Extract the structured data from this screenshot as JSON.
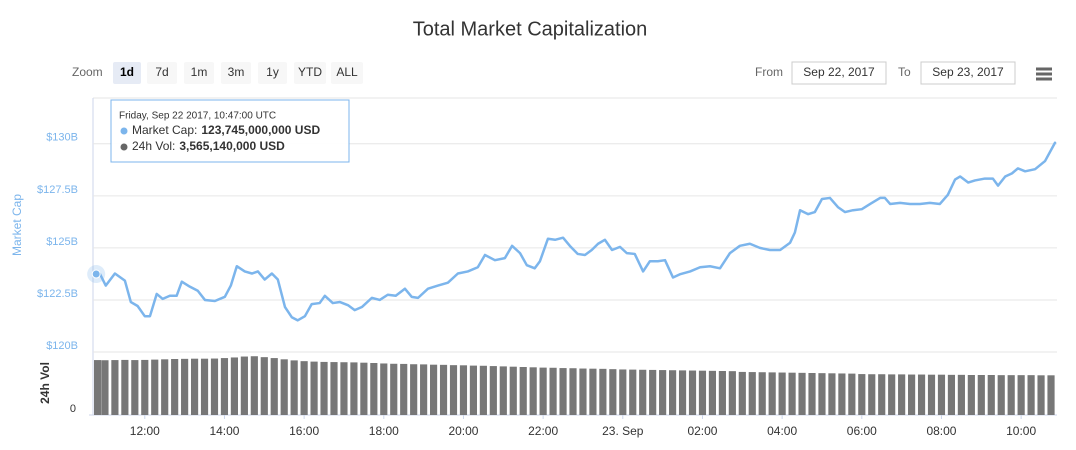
{
  "chart_data": {
    "type": "line",
    "title": "Total Market Capitalization",
    "ylabel": "Market Cap",
    "y2label": "24h Vol",
    "xlim": [
      10.7,
      34.85
    ],
    "xticks": [
      {
        "value": 12,
        "label": "12:00"
      },
      {
        "value": 14,
        "label": "14:00"
      },
      {
        "value": 16,
        "label": "16:00"
      },
      {
        "value": 18,
        "label": "18:00"
      },
      {
        "value": 20,
        "label": "20:00"
      },
      {
        "value": 22,
        "label": "22:00"
      },
      {
        "value": 24,
        "label": "23. Sep"
      },
      {
        "value": 26,
        "label": "02:00"
      },
      {
        "value": 28,
        "label": "04:00"
      },
      {
        "value": 30,
        "label": "06:00"
      },
      {
        "value": 32,
        "label": "08:00"
      },
      {
        "value": 34,
        "label": "10:00"
      }
    ],
    "ylim": [
      120,
      132.2
    ],
    "yticks": [
      {
        "value": 120,
        "label": "$120B"
      },
      {
        "value": 122.5,
        "label": "$122.5B"
      },
      {
        "value": 125,
        "label": "$125B"
      },
      {
        "value": 127.5,
        "label": "$127.5B"
      },
      {
        "value": 130,
        "label": "$130B"
      }
    ],
    "y2lim": [
      0,
      3.9
    ],
    "y2ticks": [
      0
    ],
    "grid": true,
    "series": [
      {
        "color": "#7cb5ec",
        "x": [
          10.78,
          10.87,
          11.02,
          11.25,
          11.5,
          11.65,
          11.82,
          12,
          12.13,
          12.3,
          12.45,
          12.63,
          12.8,
          12.93,
          13.13,
          13.33,
          13.51,
          13.76,
          14.01,
          14.16,
          14.31,
          14.51,
          14.69,
          14.84,
          15.01,
          15.19,
          15.34,
          15.52,
          15.69,
          15.84,
          16.02,
          16.19,
          16.39,
          16.52,
          16.72,
          16.9,
          17.1,
          17.27,
          17.45,
          17.7,
          17.9,
          18.1,
          18.3,
          18.53,
          18.7,
          18.86,
          19.11,
          19.36,
          19.61,
          19.86,
          20.11,
          20.36,
          20.54,
          20.79,
          21.04,
          21.22,
          21.42,
          21.59,
          21.79,
          21.92,
          22.12,
          22.3,
          22.5,
          22.67,
          22.87,
          23.05,
          23.22,
          23.38,
          23.55,
          23.73,
          23.93,
          24.1,
          24.3,
          24.51,
          24.68,
          24.88,
          25.06,
          25.26,
          25.43,
          25.69,
          25.94,
          26.19,
          26.44,
          26.69,
          26.94,
          27.19,
          27.44,
          27.69,
          27.95,
          28.2,
          28.32,
          28.45,
          28.65,
          28.82,
          29,
          29.2,
          29.4,
          29.58,
          29.78,
          30,
          30.21,
          30.46,
          30.58,
          30.71,
          30.96,
          31.21,
          31.46,
          31.71,
          31.96,
          32.16,
          32.34,
          32.47,
          32.67,
          32.84,
          33.09,
          33.29,
          33.42,
          33.6,
          33.77,
          33.92,
          34.1,
          34.35,
          34.6,
          34.85
        ],
        "values": [
          123.745,
          123.77,
          123.19,
          123.77,
          123.43,
          122.4,
          122.21,
          121.72,
          121.72,
          122.79,
          122.55,
          122.7,
          122.7,
          123.38,
          123.14,
          122.94,
          122.5,
          122.45,
          122.65,
          123.19,
          124.12,
          123.87,
          123.77,
          123.87,
          123.48,
          123.77,
          123.48,
          122.16,
          121.67,
          121.52,
          121.72,
          122.3,
          122.35,
          122.7,
          122.35,
          122.4,
          122.25,
          122.01,
          122.16,
          122.6,
          122.5,
          122.75,
          122.7,
          123.04,
          122.65,
          122.6,
          123.04,
          123.19,
          123.33,
          123.77,
          123.87,
          124.07,
          124.66,
          124.41,
          124.51,
          125.1,
          124.75,
          124.17,
          124.02,
          124.36,
          125.44,
          125.39,
          125.49,
          125.1,
          124.71,
          124.66,
          124.9,
          125.2,
          125.39,
          124.9,
          125.05,
          124.75,
          124.71,
          123.87,
          124.36,
          124.36,
          124.41,
          123.58,
          123.73,
          123.87,
          124.07,
          124.12,
          124.02,
          124.75,
          125.1,
          125.2,
          125,
          124.9,
          124.9,
          125.25,
          125.74,
          126.81,
          126.62,
          126.72,
          127.35,
          127.4,
          126.96,
          126.72,
          126.81,
          126.86,
          127.11,
          127.4,
          127.4,
          127.11,
          127.16,
          127.11,
          127.11,
          127.16,
          127.11,
          127.55,
          128.28,
          128.43,
          128.14,
          128.24,
          128.33,
          128.33,
          127.99,
          128.43,
          128.58,
          128.82,
          128.68,
          128.78,
          129.17,
          130.05
        ]
      },
      {
        "color": "#777777",
        "axis": "y2",
        "type": "bar",
        "x": [
          10.75,
          11,
          11.25,
          11.5,
          11.75,
          12,
          12.25,
          12.5,
          12.75,
          13,
          13.25,
          13.5,
          13.75,
          14,
          14.25,
          14.5,
          14.75,
          15,
          15.25,
          15.5,
          15.75,
          16,
          16.25,
          16.5,
          16.75,
          17,
          17.25,
          17.5,
          17.75,
          18,
          18.25,
          18.5,
          18.75,
          19,
          19.25,
          19.5,
          19.75,
          20,
          20.25,
          20.5,
          20.75,
          21,
          21.25,
          21.5,
          21.75,
          22,
          22.25,
          22.5,
          22.75,
          23,
          23.25,
          23.5,
          23.75,
          24,
          24.25,
          24.5,
          24.75,
          25,
          25.25,
          25.5,
          25.75,
          26,
          26.25,
          26.5,
          26.75,
          27,
          27.25,
          27.5,
          27.75,
          28,
          28.25,
          28.5,
          28.75,
          29,
          29.25,
          29.5,
          29.75,
          30,
          30.25,
          30.5,
          30.75,
          31,
          31.25,
          31.5,
          31.75,
          32,
          32.25,
          32.5,
          32.75,
          33,
          33.25,
          33.5,
          33.75,
          34,
          34.25,
          34.5,
          34.75
        ],
        "values": [
          3.57,
          3.56,
          3.57,
          3.58,
          3.57,
          3.58,
          3.6,
          3.62,
          3.64,
          3.65,
          3.66,
          3.66,
          3.67,
          3.7,
          3.74,
          3.8,
          3.82,
          3.76,
          3.7,
          3.62,
          3.55,
          3.5,
          3.47,
          3.45,
          3.44,
          3.43,
          3.42,
          3.4,
          3.38,
          3.35,
          3.33,
          3.32,
          3.3,
          3.29,
          3.27,
          3.26,
          3.24,
          3.23,
          3.21,
          3.2,
          3.18,
          3.16,
          3.14,
          3.12,
          3.1,
          3.08,
          3.07,
          3.05,
          3.04,
          3.02,
          3.01,
          3,
          2.98,
          2.96,
          2.95,
          2.94,
          2.93,
          2.92,
          2.91,
          2.9,
          2.89,
          2.88,
          2.87,
          2.86,
          2.85,
          2.8,
          2.79,
          2.78,
          2.77,
          2.76,
          2.75,
          2.74,
          2.73,
          2.72,
          2.71,
          2.7,
          2.69,
          2.66,
          2.65,
          2.65,
          2.64,
          2.64,
          2.63,
          2.63,
          2.62,
          2.62,
          2.61,
          2.61,
          2.6,
          2.6,
          2.6,
          2.59,
          2.59,
          2.59,
          2.59,
          2.58,
          2.58
        ]
      }
    ]
  },
  "range_selector": {
    "label": "Zoom",
    "buttons": [
      "1d",
      "7d",
      "1m",
      "3m",
      "1y",
      "YTD",
      "ALL"
    ],
    "selected": 0,
    "from_label": "From",
    "from": "Sep 22, 2017",
    "to_label": "To",
    "to": "Sep 23, 2017"
  },
  "tooltip": {
    "date": "Friday, Sep 22 2017, 10:47:00 UTC",
    "items": [
      {
        "label": "Market Cap:",
        "value": "123,745,000,000 USD"
      },
      {
        "label": "24h Vol:",
        "value": "3,565,140,000 USD"
      }
    ]
  }
}
